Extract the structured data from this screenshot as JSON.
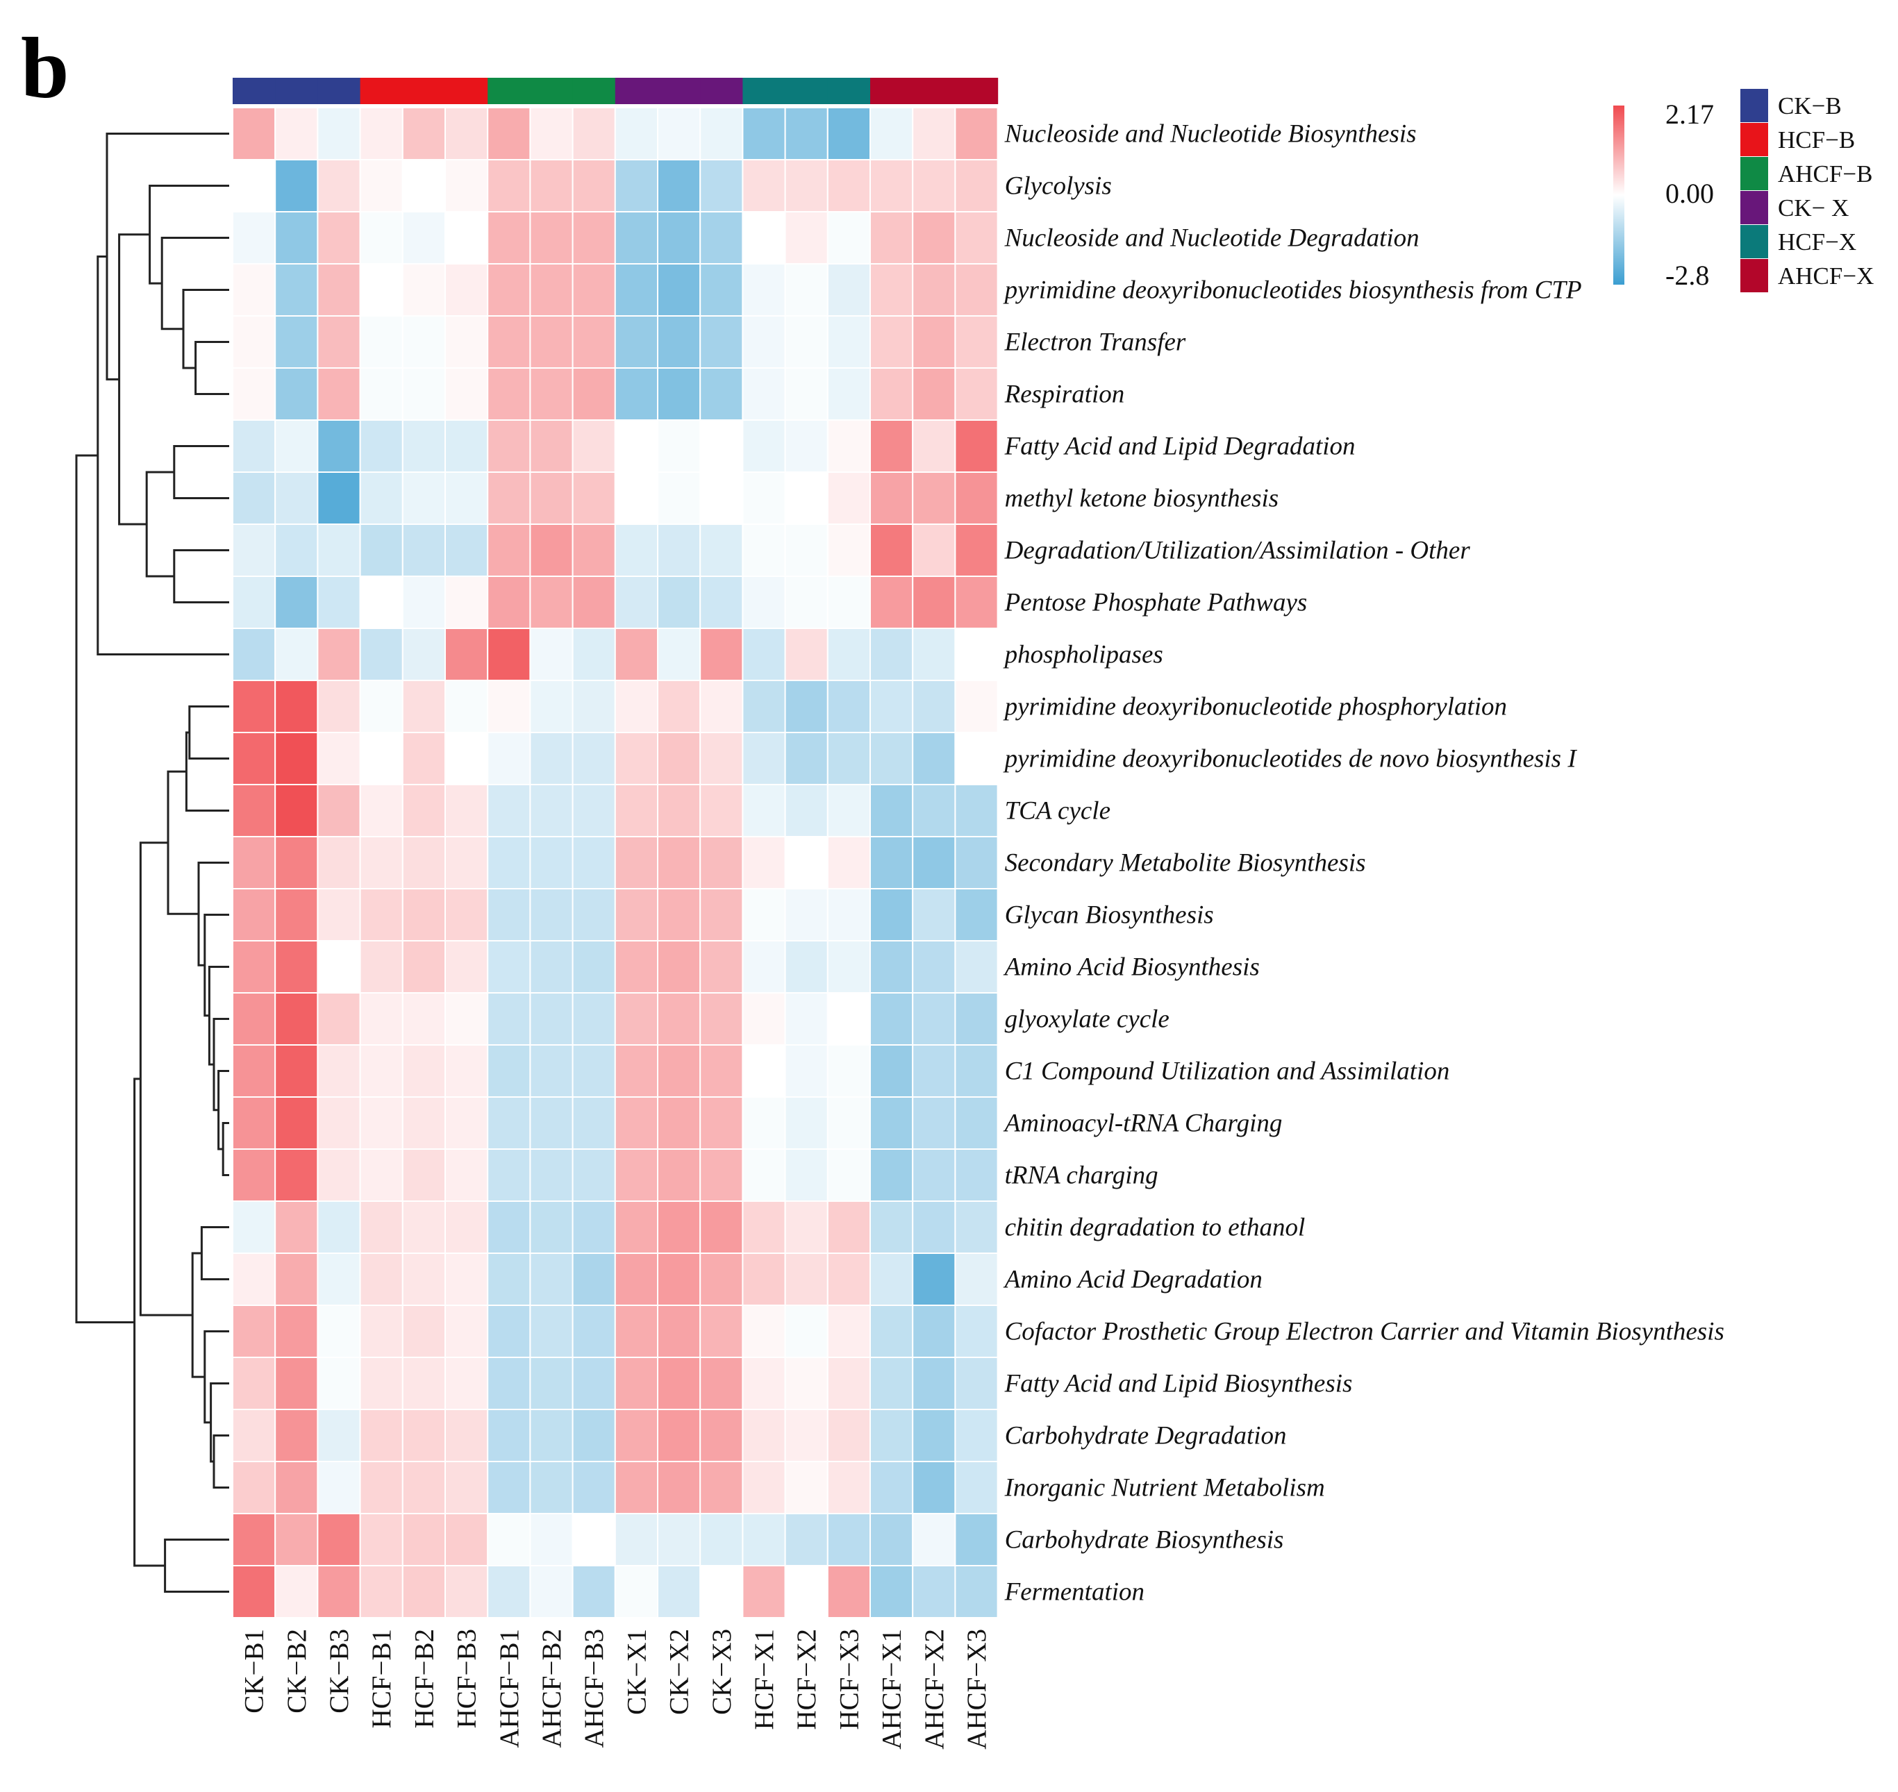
{
  "panel_label": "b",
  "colors": {
    "low": "#3b9ed1",
    "mid": "#ffffff",
    "high": "#f04a4f",
    "grid": "#ffffff",
    "dendrogram": "#222222"
  },
  "color_scale": {
    "max_label": "2.17",
    "mid_label": "0.00",
    "min_label": "-2.8",
    "min": -2.8,
    "max": 2.17
  },
  "groups": [
    {
      "name": "CK−B",
      "color": "#2f3f8f"
    },
    {
      "name": "HCF−B",
      "color": "#e8141a"
    },
    {
      "name": "AHCF−B",
      "color": "#0f8a45"
    },
    {
      "name": "CK− X",
      "color": "#68177a"
    },
    {
      "name": "HCF−X",
      "color": "#0b7a7a"
    },
    {
      "name": "AHCF−X",
      "color": "#b3062a"
    }
  ],
  "chart_data": {
    "type": "heatmap",
    "title": "",
    "columns": [
      "CK−B1",
      "CK−B2",
      "CK−B3",
      "HCF−B1",
      "HCF−B2",
      "HCF−B3",
      "AHCF−B1",
      "AHCF−B2",
      "AHCF−B3",
      "CK−X1",
      "CK−X2",
      "CK−X3",
      "HCF−X1",
      "HCF−X2",
      "HCF−X3",
      "AHCF−X1",
      "AHCF−X2",
      "AHCF−X3"
    ],
    "column_groups": [
      0,
      0,
      0,
      1,
      1,
      1,
      2,
      2,
      2,
      3,
      3,
      3,
      4,
      4,
      4,
      5,
      5,
      5
    ],
    "rows": [
      "Nucleoside and Nucleotide Biosynthesis",
      "Glycolysis",
      "Nucleoside and Nucleotide Degradation",
      "pyrimidine deoxyribonucleotides biosynthesis from CTP",
      "Electron Transfer",
      "Respiration",
      "Fatty Acid and Lipid Degradation",
      "methyl ketone biosynthesis",
      "Degradation/Utilization/Assimilation - Other",
      "Pentose Phosphate Pathways",
      "phospholipases",
      "pyrimidine deoxyribonucleotide phosphorylation",
      "pyrimidine deoxyribonucleotides de novo biosynthesis I",
      "TCA cycle",
      "Secondary Metabolite Biosynthesis",
      "Glycan Biosynthesis",
      "Amino Acid Biosynthesis",
      "glyoxylate cycle",
      "C1 Compound Utilization and Assimilation",
      "Aminoacyl-tRNA Charging",
      "tRNA charging",
      "chitin degradation to ethanol",
      "Amino Acid Degradation",
      "Cofactor Prosthetic Group Electron Carrier and Vitamin Biosynthesis",
      "Fatty Acid and Lipid Biosynthesis",
      "Carbohydrate Degradation",
      "Inorganic Nutrient Metabolism",
      "Carbohydrate Biosynthesis",
      "Fermentation"
    ],
    "values": [
      [
        1.0,
        0.2,
        -0.3,
        0.2,
        0.7,
        0.4,
        1.0,
        0.2,
        0.4,
        -0.3,
        -0.2,
        -0.3,
        -1.6,
        -1.6,
        -2.0,
        -0.3,
        0.3,
        1.0
      ],
      [
        0.0,
        -2.1,
        0.4,
        0.1,
        0.0,
        0.1,
        0.7,
        0.7,
        0.7,
        -1.2,
        -1.9,
        -1.0,
        0.4,
        0.4,
        0.5,
        0.5,
        0.5,
        0.6
      ],
      [
        -0.2,
        -1.6,
        0.7,
        -0.1,
        -0.2,
        0.0,
        0.9,
        0.9,
        0.9,
        -1.5,
        -1.7,
        -1.3,
        0.0,
        0.2,
        -0.1,
        0.7,
        0.9,
        0.6
      ],
      [
        0.1,
        -1.4,
        0.8,
        0.0,
        0.1,
        0.2,
        0.9,
        0.9,
        0.9,
        -1.6,
        -1.9,
        -1.4,
        -0.2,
        -0.1,
        -0.4,
        0.6,
        0.8,
        0.7
      ],
      [
        0.1,
        -1.4,
        0.8,
        -0.1,
        -0.1,
        0.1,
        0.9,
        0.9,
        0.9,
        -1.5,
        -1.7,
        -1.3,
        -0.2,
        -0.1,
        -0.3,
        0.6,
        0.9,
        0.6
      ],
      [
        0.1,
        -1.5,
        0.9,
        -0.1,
        -0.1,
        0.1,
        0.9,
        0.9,
        1.0,
        -1.6,
        -1.8,
        -1.4,
        -0.2,
        -0.1,
        -0.3,
        0.7,
        1.0,
        0.6
      ],
      [
        -0.6,
        -0.3,
        -2.0,
        -0.7,
        -0.5,
        -0.5,
        0.8,
        0.8,
        0.4,
        0.0,
        -0.1,
        0.0,
        -0.3,
        -0.2,
        0.1,
        1.4,
        0.4,
        1.7
      ],
      [
        -0.8,
        -0.6,
        -2.4,
        -0.5,
        -0.3,
        -0.3,
        0.8,
        0.8,
        0.7,
        0.0,
        -0.1,
        0.0,
        -0.1,
        0.0,
        0.2,
        1.1,
        1.0,
        1.3
      ],
      [
        -0.4,
        -0.7,
        -0.5,
        -0.9,
        -0.8,
        -0.8,
        1.0,
        1.2,
        1.0,
        -0.5,
        -0.6,
        -0.5,
        -0.1,
        -0.1,
        0.1,
        1.6,
        0.5,
        1.5
      ],
      [
        -0.5,
        -1.7,
        -0.7,
        0.0,
        -0.2,
        0.1,
        1.1,
        1.0,
        1.1,
        -0.6,
        -0.9,
        -0.7,
        -0.2,
        -0.1,
        -0.1,
        1.2,
        1.4,
        1.2
      ],
      [
        -1.0,
        -0.3,
        0.9,
        -0.8,
        -0.4,
        1.4,
        1.9,
        -0.2,
        -0.5,
        1.0,
        -0.3,
        1.2,
        -0.7,
        0.4,
        -0.5,
        -0.8,
        -0.5,
        0.0
      ],
      [
        1.8,
        2.0,
        0.4,
        -0.1,
        0.4,
        -0.1,
        0.1,
        -0.3,
        -0.4,
        0.2,
        0.5,
        0.2,
        -0.9,
        -1.3,
        -1.0,
        -0.7,
        -0.8,
        0.1
      ],
      [
        1.8,
        2.1,
        0.2,
        0.0,
        0.5,
        0.0,
        -0.2,
        -0.6,
        -0.6,
        0.5,
        0.7,
        0.4,
        -0.6,
        -1.1,
        -0.9,
        -0.9,
        -1.3,
        0.0
      ],
      [
        1.6,
        2.1,
        0.8,
        0.2,
        0.5,
        0.3,
        -0.6,
        -0.6,
        -0.6,
        0.6,
        0.7,
        0.5,
        -0.3,
        -0.5,
        -0.3,
        -1.4,
        -1.1,
        -1.1
      ],
      [
        1.1,
        1.5,
        0.4,
        0.3,
        0.4,
        0.3,
        -0.7,
        -0.7,
        -0.7,
        0.8,
        0.9,
        0.8,
        0.2,
        0.0,
        0.2,
        -1.5,
        -1.6,
        -1.2
      ],
      [
        1.1,
        1.5,
        0.3,
        0.5,
        0.6,
        0.5,
        -0.8,
        -0.8,
        -0.8,
        0.8,
        0.9,
        0.8,
        -0.1,
        -0.2,
        -0.2,
        -1.6,
        -0.8,
        -1.4
      ],
      [
        1.2,
        1.7,
        0.0,
        0.4,
        0.6,
        0.3,
        -0.7,
        -0.8,
        -0.9,
        0.9,
        1.0,
        0.8,
        -0.2,
        -0.5,
        -0.3,
        -1.3,
        -1.0,
        -0.6
      ],
      [
        1.3,
        1.9,
        0.6,
        0.2,
        0.2,
        0.1,
        -0.8,
        -0.8,
        -0.8,
        0.8,
        0.9,
        0.8,
        0.1,
        -0.2,
        0.0,
        -1.3,
        -1.0,
        -1.2
      ],
      [
        1.3,
        1.9,
        0.3,
        0.2,
        0.3,
        0.2,
        -0.9,
        -0.8,
        -0.8,
        0.9,
        1.0,
        0.9,
        0.0,
        -0.2,
        -0.1,
        -1.5,
        -1.0,
        -1.1
      ],
      [
        1.3,
        1.9,
        0.3,
        0.2,
        0.3,
        0.2,
        -0.8,
        -0.8,
        -0.8,
        0.9,
        1.0,
        0.9,
        -0.1,
        -0.3,
        -0.1,
        -1.4,
        -1.0,
        -1.1
      ],
      [
        1.3,
        1.8,
        0.3,
        0.2,
        0.4,
        0.2,
        -0.8,
        -0.8,
        -0.8,
        0.9,
        1.0,
        0.9,
        -0.1,
        -0.3,
        -0.1,
        -1.4,
        -1.0,
        -1.0
      ],
      [
        -0.3,
        0.9,
        -0.5,
        0.4,
        0.3,
        0.3,
        -1.0,
        -0.9,
        -1.0,
        1.0,
        1.2,
        1.2,
        0.5,
        0.3,
        0.6,
        -0.9,
        -1.0,
        -0.8
      ],
      [
        0.2,
        1.0,
        -0.3,
        0.4,
        0.3,
        0.2,
        -0.9,
        -0.8,
        -1.2,
        1.1,
        1.2,
        1.0,
        0.6,
        0.4,
        0.5,
        -0.6,
        -2.2,
        -0.4
      ],
      [
        0.9,
        1.2,
        -0.1,
        0.3,
        0.4,
        0.2,
        -1.0,
        -0.8,
        -1.0,
        1.0,
        1.1,
        0.9,
        0.1,
        -0.1,
        0.2,
        -0.9,
        -1.3,
        -0.7
      ],
      [
        0.6,
        1.3,
        -0.1,
        0.3,
        0.3,
        0.2,
        -1.0,
        -0.9,
        -1.0,
        1.0,
        1.2,
        1.1,
        0.2,
        0.1,
        0.3,
        -0.9,
        -1.3,
        -0.8
      ],
      [
        0.4,
        1.3,
        -0.4,
        0.5,
        0.5,
        0.4,
        -1.0,
        -0.9,
        -1.1,
        1.0,
        1.2,
        1.1,
        0.3,
        0.2,
        0.4,
        -0.9,
        -1.4,
        -0.7
      ],
      [
        0.6,
        1.1,
        -0.2,
        0.5,
        0.5,
        0.4,
        -1.0,
        -0.9,
        -1.0,
        1.0,
        1.1,
        1.0,
        0.3,
        0.1,
        0.3,
        -1.0,
        -1.6,
        -0.7
      ],
      [
        1.5,
        1.0,
        1.5,
        0.5,
        0.6,
        0.6,
        -0.1,
        -0.2,
        0.0,
        -0.4,
        -0.4,
        -0.5,
        -0.5,
        -0.8,
        -1.0,
        -1.2,
        -0.2,
        -1.4
      ],
      [
        1.7,
        0.2,
        1.2,
        0.5,
        0.6,
        0.4,
        -0.6,
        -0.2,
        -1.0,
        -0.1,
        -0.6,
        0.0,
        0.9,
        0.0,
        1.1,
        -1.4,
        -1.0,
        -1.1
      ]
    ],
    "row_dendrogram": [
      [
        19,
        20
      ],
      [
        18,
        21
      ],
      [
        17,
        22
      ],
      [
        16,
        23
      ],
      [
        15,
        24
      ],
      [
        14,
        25
      ],
      [
        12,
        13
      ],
      [
        26,
        27
      ],
      [
        22,
        23
      ],
      [
        29,
        30
      ],
      [
        24,
        25
      ],
      [
        31,
        32
      ],
      [
        33,
        34
      ],
      [
        28,
        35
      ],
      [
        36,
        37
      ],
      [
        5,
        6
      ],
      [
        0,
        1
      ],
      [
        4,
        5
      ],
      [
        6,
        7
      ],
      [
        8,
        9
      ],
      [
        7,
        8
      ],
      [
        11,
        12
      ],
      [
        9,
        10
      ]
    ],
    "_row_dendrogram_note": "rendered from linkage below",
    "linkage": [
      {
        "a": 19,
        "b": 20,
        "h": 0.04
      },
      {
        "a": "L0",
        "b": 18,
        "h": 0.07
      },
      {
        "a": "L1",
        "b": 17,
        "h": 0.1
      },
      {
        "a": "L2",
        "b": 16,
        "h": 0.13
      },
      {
        "a": "L3",
        "b": 15,
        "h": 0.16
      },
      {
        "a": "L4",
        "b": 14,
        "h": 0.2
      },
      {
        "a": 11,
        "b": 12,
        "h": 0.26
      },
      {
        "a": "L6",
        "b": 13,
        "h": 0.28
      },
      {
        "a": "L5",
        "b": "L7",
        "h": 0.4
      },
      {
        "a": 25,
        "b": 26,
        "h": 0.1
      },
      {
        "a": 24,
        "b": "L9",
        "h": 0.12
      },
      {
        "a": 23,
        "b": "L10",
        "h": 0.16
      },
      {
        "a": 21,
        "b": 22,
        "h": 0.18
      },
      {
        "a": "L12",
        "b": "L11",
        "h": 0.24
      },
      {
        "a": "L8",
        "b": "L13",
        "h": 0.58
      },
      {
        "a": 27,
        "b": 28,
        "h": 0.42
      },
      {
        "a": "L14",
        "b": "L15",
        "h": 0.62
      },
      {
        "a": 4,
        "b": 5,
        "h": 0.22
      },
      {
        "a": 3,
        "b": "L17",
        "h": 0.3
      },
      {
        "a": 2,
        "b": "L18",
        "h": 0.44
      },
      {
        "a": 1,
        "b": "L19",
        "h": 0.52
      },
      {
        "a": 6,
        "b": 7,
        "h": 0.36
      },
      {
        "a": 8,
        "b": 9,
        "h": 0.36
      },
      {
        "a": "L21",
        "b": "L22",
        "h": 0.54
      },
      {
        "a": "L20",
        "b": "L23",
        "h": 0.72
      },
      {
        "a": 0,
        "b": "L24",
        "h": 0.8
      },
      {
        "a": "L25",
        "b": 10,
        "h": 0.86
      },
      {
        "a": "L26",
        "b": "L16",
        "h": 1.0
      }
    ]
  }
}
